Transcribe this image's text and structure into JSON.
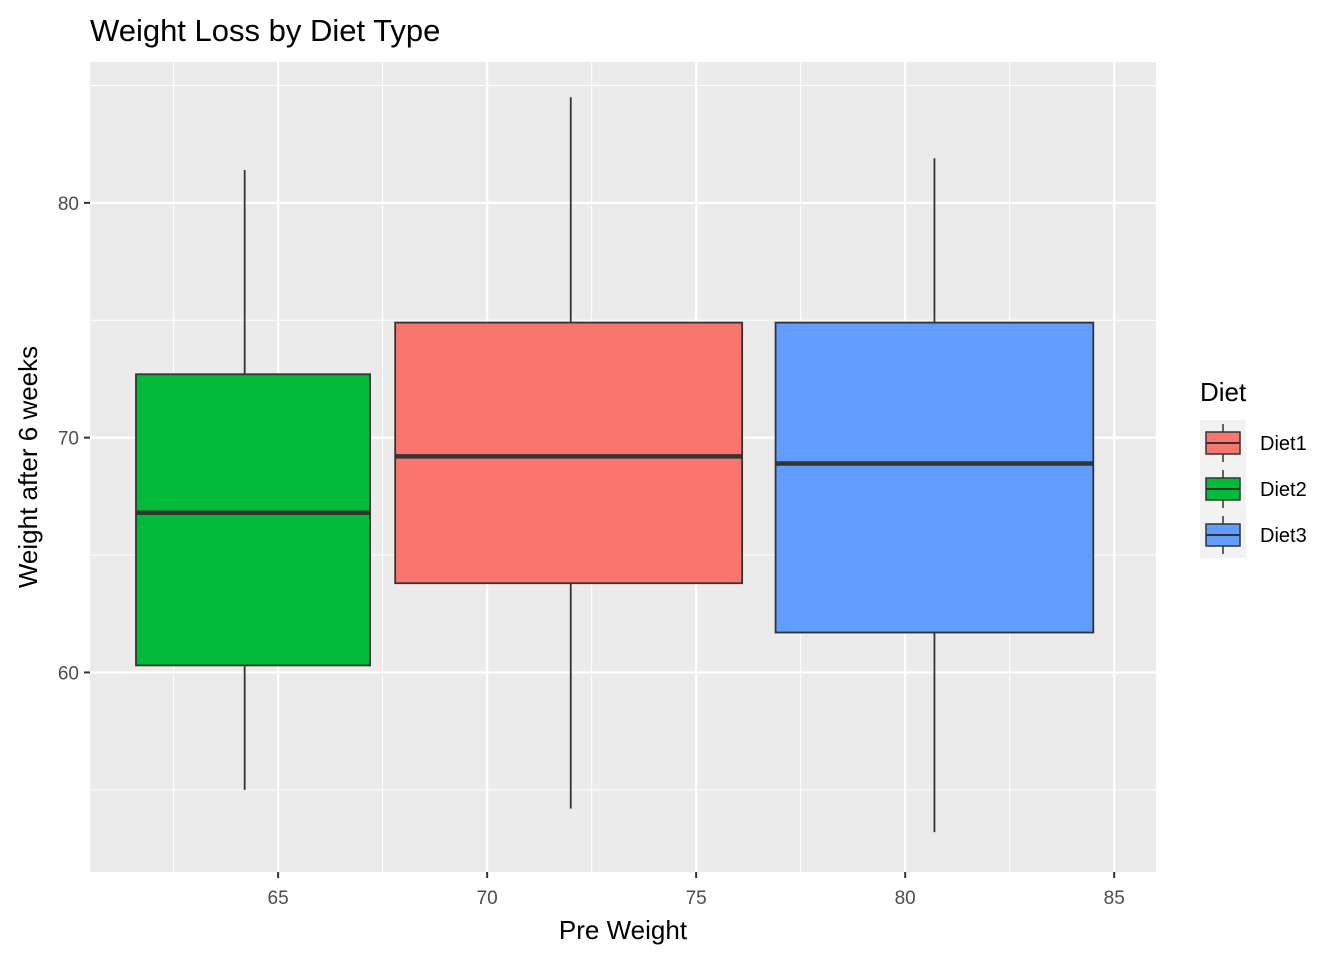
{
  "chart_data": {
    "type": "boxplot",
    "title": "Weight Loss by Diet Type",
    "xlabel": "Pre Weight",
    "ylabel": "Weight after 6 weeks",
    "xlim": [
      60.5,
      86.0
    ],
    "ylim": [
      51.5,
      86.0
    ],
    "x_ticks": [
      65,
      70,
      75,
      80,
      85
    ],
    "y_ticks": [
      60,
      70,
      80
    ],
    "grid": true,
    "legend": {
      "title": "Diet",
      "placement": "right",
      "entries": [
        "Diet1",
        "Diet2",
        "Diet3"
      ]
    },
    "series": [
      {
        "name": "Diet1",
        "color": "#F8766D",
        "x_center": 72.0,
        "x_min": 67.8,
        "x_max": 76.1,
        "whisker_low": 54.2,
        "q1": 63.8,
        "median": 69.2,
        "q3": 74.9,
        "whisker_high": 84.5
      },
      {
        "name": "Diet2",
        "color": "#00BA38",
        "x_center": 64.2,
        "x_min": 61.6,
        "x_max": 67.2,
        "whisker_low": 55.0,
        "q1": 60.3,
        "median": 66.8,
        "q3": 72.7,
        "whisker_high": 81.4
      },
      {
        "name": "Diet3",
        "color": "#619CFF",
        "x_center": 80.7,
        "x_min": 76.9,
        "x_max": 84.5,
        "whisker_low": 53.2,
        "q1": 61.7,
        "median": 68.9,
        "q3": 74.9,
        "whisker_high": 81.9
      }
    ]
  }
}
